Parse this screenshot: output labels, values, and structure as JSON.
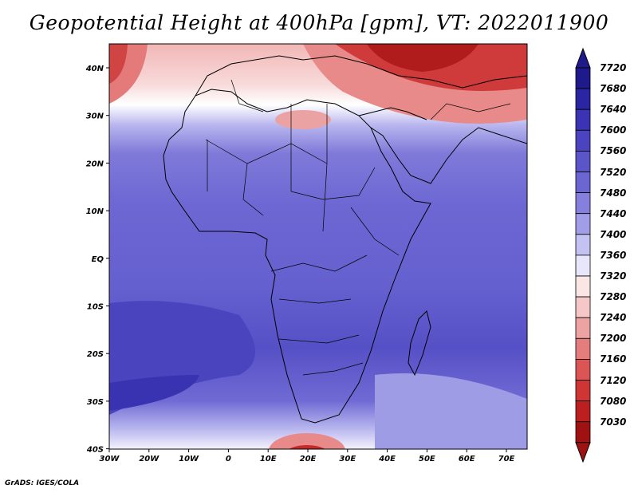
{
  "title": "Geopotential Height at 400hPa [gpm], VT: 2022011900",
  "credit": "GrADS: IGES/COLA",
  "map": {
    "lon_ticks": [
      "30W",
      "20W",
      "10W",
      "0",
      "10E",
      "20E",
      "30E",
      "40E",
      "50E",
      "60E",
      "70E"
    ],
    "lat_ticks": [
      "40N",
      "30N",
      "20N",
      "10N",
      "EQ",
      "10S",
      "20S",
      "30S",
      "40S"
    ],
    "lon_range": [
      -30,
      75
    ],
    "lat_range": [
      -40,
      45
    ]
  },
  "colorbar": {
    "labels": [
      "7720",
      "7680",
      "7640",
      "7600",
      "7560",
      "7520",
      "7480",
      "7440",
      "7400",
      "7360",
      "7320",
      "7280",
      "7240",
      "7200",
      "7160",
      "7120",
      "7080",
      "7030"
    ],
    "colors": [
      "#1e1a8c",
      "#2a25a3",
      "#3a34b5",
      "#4a44c0",
      "#5a55c9",
      "#6b66d1",
      "#8580dc",
      "#a19ee7",
      "#c4c2f2",
      "#e7e6fa",
      "#fbe6e6",
      "#f5c7c7",
      "#eea3a3",
      "#e67d7d",
      "#dc5555",
      "#cf3535",
      "#bb1f1f",
      "#a01212"
    ]
  }
}
